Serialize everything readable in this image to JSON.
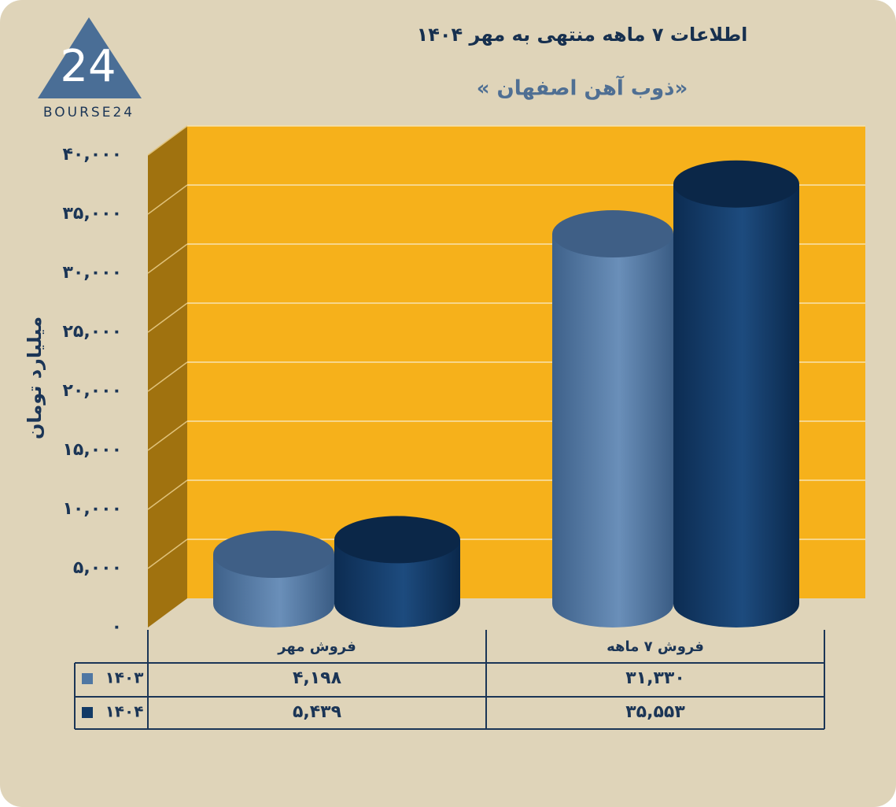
{
  "chart_data": {
    "type": "bar",
    "title": "اطلاعات ۷ ماهه منتهی به مهر ۱۴۰۴",
    "subtitle": "« ذوب آهن اصفهان»",
    "y_label": "میلیارد تومان",
    "categories": [
      "فروش مهر",
      "فروش ۷ ماهه"
    ],
    "series": [
      {
        "name": "۱۴۰۳",
        "color": "#4f77a3",
        "values": [
          4198,
          31330
        ],
        "value_labels": [
          "۴,۱۹۸",
          "۳۱,۳۳۰"
        ]
      },
      {
        "name": "۱۴۰۴",
        "color": "#123a66",
        "values": [
          5439,
          35553
        ],
        "value_labels": [
          "۵,۴۳۹",
          "۳۵,۵۵۳"
        ]
      }
    ],
    "ylim": [
      0,
      40000
    ],
    "yticks": [
      {
        "value": 0,
        "label": "۰"
      },
      {
        "value": 5000,
        "label": "۵,۰۰۰"
      },
      {
        "value": 10000,
        "label": "۱۰,۰۰۰"
      },
      {
        "value": 15000,
        "label": "۱۵,۰۰۰"
      },
      {
        "value": 20000,
        "label": "۲۰,۰۰۰"
      },
      {
        "value": 25000,
        "label": "۲۵,۰۰۰"
      },
      {
        "value": 30000,
        "label": "۳۰,۰۰۰"
      },
      {
        "value": 35000,
        "label": "۳۵,۰۰۰"
      },
      {
        "value": 40000,
        "label": "۴۰,۰۰۰"
      }
    ],
    "grid": true
  },
  "logo": {
    "mark": "24",
    "text": "BOURSE24"
  }
}
